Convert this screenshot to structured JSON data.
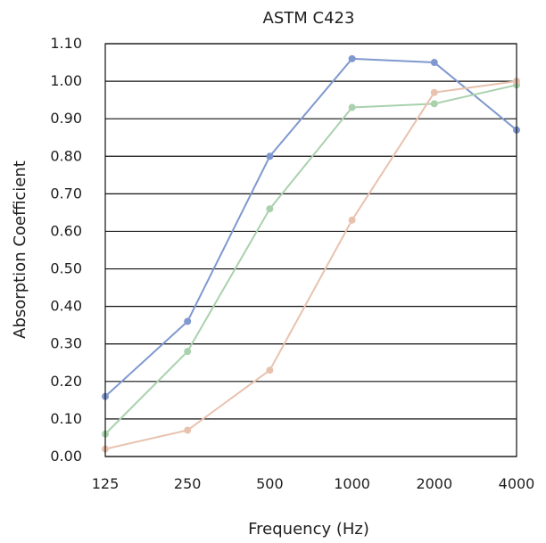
{
  "chart_data": {
    "type": "line",
    "title": "ASTM C423",
    "xlabel": "Frequency (Hz)",
    "ylabel": "Absorption Coefficient",
    "categories": [
      "125",
      "250",
      "500",
      "1000",
      "2000",
      "4000"
    ],
    "y_ticks": [
      "0.00",
      "0.10",
      "0.20",
      "0.30",
      "0.40",
      "0.50",
      "0.60",
      "0.70",
      "0.80",
      "0.90",
      "1.00",
      "1.10"
    ],
    "ylim": [
      0,
      1.1
    ],
    "grid": "horizontal",
    "legend": "none",
    "series": [
      {
        "color": "#7f98cf",
        "values": [
          0.16,
          0.36,
          0.8,
          1.06,
          1.05,
          0.87
        ]
      },
      {
        "color": "#a9d1ad",
        "values": [
          0.06,
          0.28,
          0.66,
          0.93,
          0.94,
          0.99
        ]
      },
      {
        "color": "#e8c2ae",
        "values": [
          0.02,
          0.07,
          0.23,
          0.63,
          0.97,
          1.0
        ]
      }
    ]
  }
}
